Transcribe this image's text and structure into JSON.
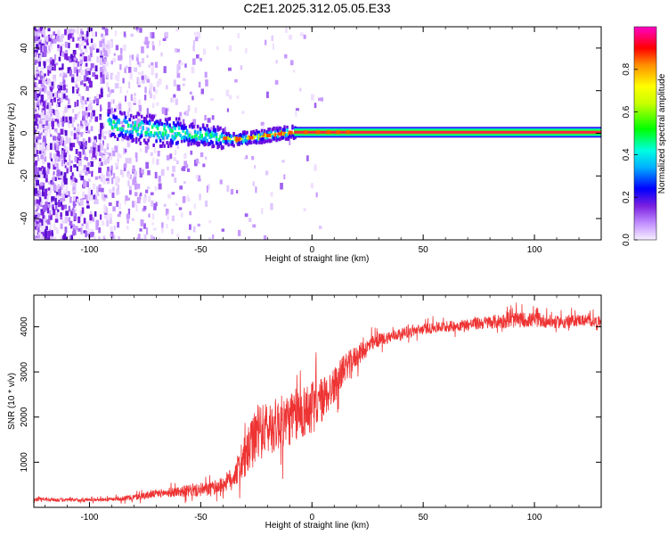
{
  "figure": {
    "title": "C2E1.2025.312.05.05.E33"
  },
  "chart_data": [
    {
      "type": "heatmap",
      "xlabel": "Height of straight line (km)",
      "ylabel": "Frequency (Hz)",
      "xlim": [
        -125,
        130
      ],
      "ylim": [
        -50,
        50
      ],
      "xticks": [
        -100,
        -50,
        0,
        50,
        100
      ],
      "yticks": [
        -40,
        -20,
        0,
        20,
        40
      ],
      "colorbar": {
        "label": "Normalized spectral amplitude",
        "range": [
          0,
          1
        ],
        "ticks": [
          0.0,
          0.2,
          0.4,
          0.6,
          0.8
        ],
        "tick_labels": [
          "0.0",
          "0.2",
          "0.4",
          "0.6",
          "0.8"
        ],
        "colormap": [
          "#f2e8ff",
          "#8a2be2",
          "#0000ff",
          "#00ffff",
          "#00ff00",
          "#ffff00",
          "#ff8000",
          "#ff0000",
          "#ff00ff"
        ]
      },
      "ridge": [
        {
          "x": -90,
          "freq": 4
        },
        {
          "x": -70,
          "freq": 1
        },
        {
          "x": -50,
          "freq": -1
        },
        {
          "x": -35,
          "freq": -3
        },
        {
          "x": -20,
          "freq": -1
        },
        {
          "x": -10,
          "freq": 0.5
        },
        {
          "x": 0,
          "freq": 0.5
        },
        {
          "x": 130,
          "freq": 0.5
        }
      ]
    },
    {
      "type": "line",
      "xlabel": "Height of straight line (km)",
      "ylabel": "SNR (10 * v/v)",
      "xlim": [
        -125,
        130
      ],
      "ylim": [
        0,
        4700
      ],
      "xticks": [
        -100,
        -50,
        0,
        50,
        100
      ],
      "yticks": [
        1000,
        2000,
        3000,
        4000
      ],
      "color": "#ee3333",
      "series": [
        {
          "x": [
            -125,
            -110,
            -100,
            -90,
            -80,
            -70,
            -60,
            -50,
            -45,
            -40,
            -35,
            -30,
            -25,
            -20,
            -15,
            -10,
            -5,
            0,
            5,
            10,
            15,
            20,
            25,
            30,
            40,
            50,
            60,
            70,
            80,
            90,
            100,
            110,
            120,
            130
          ],
          "values": [
            180,
            160,
            170,
            180,
            220,
            300,
            350,
            380,
            420,
            500,
            700,
            1100,
            1600,
            1750,
            1850,
            1950,
            2100,
            2200,
            2400,
            2700,
            3100,
            3350,
            3550,
            3700,
            3850,
            3950,
            4000,
            4050,
            4100,
            4150,
            4150,
            4100,
            4150,
            4100
          ],
          "noise": [
            40,
            40,
            40,
            40,
            70,
            90,
            120,
            150,
            150,
            180,
            250,
            500,
            600,
            600,
            600,
            600,
            600,
            600,
            500,
            400,
            300,
            250,
            200,
            150,
            120,
            120,
            120,
            130,
            150,
            180,
            160,
            140,
            130,
            120
          ]
        }
      ]
    }
  ]
}
